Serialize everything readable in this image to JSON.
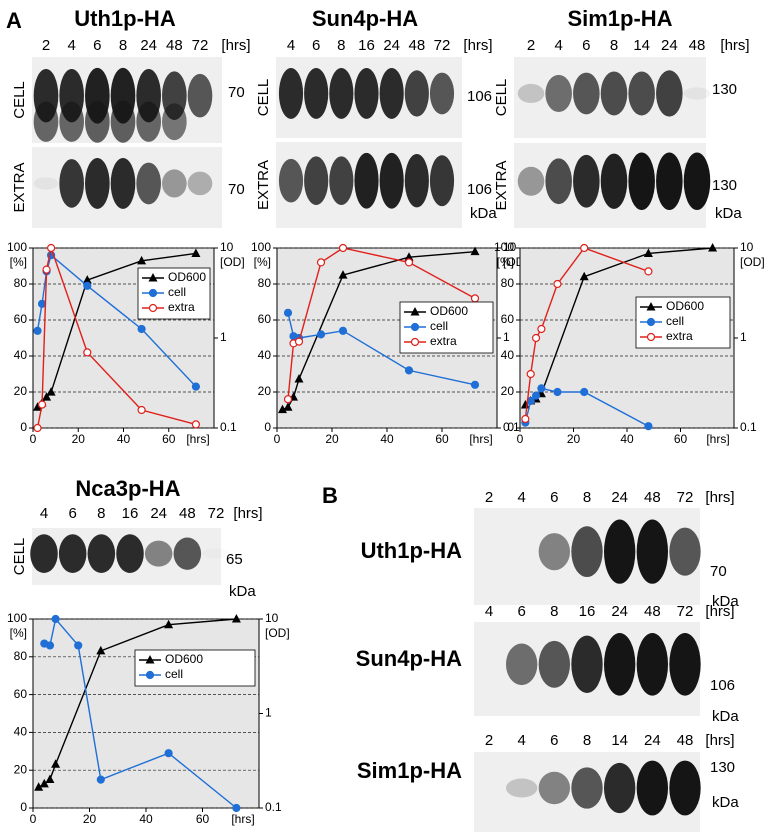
{
  "figure": {
    "panel_a": "A",
    "panel_b": "B"
  },
  "blots": [
    {
      "title": "Uth1p-HA",
      "lanes": [
        2,
        4,
        6,
        8,
        24,
        48,
        72
      ],
      "time_unit": "[hrs]",
      "rows": [
        {
          "label": "CELL",
          "marker": 70
        },
        {
          "label": "EXTRA",
          "marker": 70
        }
      ]
    },
    {
      "title": "Sun4p-HA",
      "lanes": [
        4,
        6,
        8,
        16,
        24,
        48,
        72
      ],
      "time_unit": "[hrs]",
      "rows": [
        {
          "label": "CELL",
          "marker": 106
        },
        {
          "label": "EXTRA",
          "marker": 106
        }
      ],
      "unit": "kDa"
    },
    {
      "title": "Sim1p-HA",
      "lanes": [
        2,
        4,
        6,
        8,
        14,
        24,
        48
      ],
      "time_unit": "[hrs]",
      "rows": [
        {
          "label": "CELL",
          "marker": 130
        },
        {
          "label": "EXTRA",
          "marker": 130
        }
      ],
      "unit": "kDa"
    },
    {
      "title": "Nca3p-HA",
      "lanes": [
        4,
        6,
        8,
        16,
        24,
        48,
        72
      ],
      "time_unit": "[hrs]",
      "rows": [
        {
          "label": "CELL",
          "marker": 65
        }
      ],
      "unit": "kDa"
    }
  ],
  "blots_b": [
    {
      "title": "Uth1p-HA",
      "lanes": [
        2,
        4,
        6,
        8,
        24,
        48,
        72
      ],
      "time_unit": "[hrs]",
      "marker": 70,
      "unit": "kDa"
    },
    {
      "title": "Sun4p-HA",
      "lanes": [
        4,
        6,
        8,
        16,
        24,
        48,
        72
      ],
      "time_unit": "[hrs]",
      "marker": 106,
      "unit": "kDa"
    },
    {
      "title": "Sim1p-HA",
      "lanes": [
        2,
        4,
        6,
        8,
        14,
        24,
        48
      ],
      "time_unit": "[hrs]",
      "marker": 130,
      "unit": "kDa"
    }
  ],
  "chart_data": [
    {
      "type": "line",
      "ylabel": "[%]",
      "y2label": "[OD]",
      "xlabel": "[hrs]",
      "xlim": [
        0,
        80
      ],
      "xticks": [
        0,
        20,
        40,
        60
      ],
      "ylim": [
        0,
        100
      ],
      "yticks": [
        0,
        20,
        40,
        60,
        80,
        100
      ],
      "y2lim": [
        0.1,
        10
      ],
      "y2ticks": [
        0.1,
        1,
        10
      ],
      "y2scale": "log",
      "grid": true,
      "series": [
        {
          "name": "OD600",
          "color": "#000000",
          "marker": "triangle",
          "axis": "y2",
          "x": [
            2,
            4,
            6,
            8,
            24,
            48,
            72
          ],
          "values": [
            0.17,
            0.19,
            0.22,
            0.25,
            4.4,
            7.2,
            8.7
          ]
        },
        {
          "name": "cell",
          "color": "#1f6fd6",
          "marker": "circle",
          "x": [
            2,
            4,
            6,
            8,
            24,
            48,
            72
          ],
          "values": [
            54,
            69,
            87,
            96,
            79,
            55,
            23
          ]
        },
        {
          "name": "extra",
          "color": "#e0201b",
          "marker": "open-circle",
          "x": [
            2,
            4,
            6,
            8,
            24,
            48,
            72
          ],
          "values": [
            0,
            13,
            88,
            100,
            42,
            10,
            2
          ]
        }
      ]
    },
    {
      "type": "line",
      "ylabel": "[%]",
      "y2label": "[OD]",
      "xlabel": "[hrs]",
      "xlim": [
        0,
        80
      ],
      "xticks": [
        0,
        20,
        40,
        60
      ],
      "ylim": [
        0,
        100
      ],
      "yticks": [
        0,
        20,
        40,
        60,
        80,
        100
      ],
      "y2lim": [
        0.1,
        10
      ],
      "y2ticks": [
        0.1,
        1,
        10
      ],
      "y2scale": "log",
      "grid": true,
      "series": [
        {
          "name": "OD600",
          "color": "#000000",
          "marker": "triangle",
          "axis": "y2",
          "x": [
            2,
            4,
            6,
            8,
            24,
            48,
            72
          ],
          "values": [
            0.16,
            0.17,
            0.22,
            0.35,
            5.0,
            7.9,
            9.1
          ]
        },
        {
          "name": "cell",
          "color": "#1f6fd6",
          "marker": "circle",
          "x": [
            4,
            6,
            8,
            16,
            24,
            48,
            72
          ],
          "values": [
            64,
            51,
            50,
            52,
            54,
            32,
            24
          ]
        },
        {
          "name": "extra",
          "color": "#e0201b",
          "marker": "open-circle",
          "x": [
            4,
            6,
            8,
            16,
            24,
            48,
            72
          ],
          "values": [
            16,
            47,
            48,
            92,
            100,
            92,
            72
          ]
        }
      ]
    },
    {
      "type": "line",
      "ylabel": "[%]",
      "y2label": "[OD]",
      "xlabel": "[hrs]",
      "xlim": [
        0,
        80
      ],
      "xticks": [
        0,
        20,
        40,
        60
      ],
      "ylim": [
        0,
        100
      ],
      "yticks": [
        0,
        20,
        40,
        60,
        80,
        100
      ],
      "y2lim": [
        0.1,
        10
      ],
      "y2ticks": [
        0.1,
        1,
        10
      ],
      "y2scale": "log",
      "grid": true,
      "series": [
        {
          "name": "OD600",
          "color": "#000000",
          "marker": "triangle",
          "axis": "y2",
          "x": [
            2,
            4,
            6,
            8,
            24,
            48,
            72
          ],
          "values": [
            0.18,
            0.2,
            0.21,
            0.24,
            4.8,
            8.7,
            10
          ]
        },
        {
          "name": "cell",
          "color": "#1f6fd6",
          "marker": "circle",
          "x": [
            2,
            4,
            6,
            8,
            14,
            24,
            48
          ],
          "values": [
            3,
            15,
            18,
            22,
            20,
            20,
            1
          ]
        },
        {
          "name": "extra",
          "color": "#e0201b",
          "marker": "open-circle",
          "x": [
            2,
            4,
            6,
            8,
            14,
            24,
            48
          ],
          "values": [
            5,
            30,
            50,
            55,
            80,
            100,
            87
          ]
        }
      ]
    },
    {
      "type": "line",
      "ylabel": "[%]",
      "y2label": "[OD]",
      "xlabel": "[hrs]",
      "xlim": [
        0,
        80
      ],
      "xticks": [
        0,
        20,
        40,
        60
      ],
      "ylim": [
        0,
        100
      ],
      "yticks": [
        0,
        20,
        40,
        60,
        80,
        100
      ],
      "y2lim": [
        0.1,
        10
      ],
      "y2ticks": [
        0.1,
        1,
        10
      ],
      "y2scale": "log",
      "grid": true,
      "series": [
        {
          "name": "OD600",
          "color": "#000000",
          "marker": "triangle",
          "axis": "y2",
          "x": [
            2,
            4,
            6,
            8,
            24,
            48,
            72
          ],
          "values": [
            0.166,
            0.18,
            0.2,
            0.29,
            4.6,
            8.7,
            10
          ]
        },
        {
          "name": "cell",
          "color": "#1f6fd6",
          "marker": "circle",
          "x": [
            4,
            6,
            8,
            16,
            24,
            48,
            72
          ],
          "values": [
            87,
            86,
            100,
            86,
            15,
            29,
            0
          ]
        }
      ]
    }
  ]
}
